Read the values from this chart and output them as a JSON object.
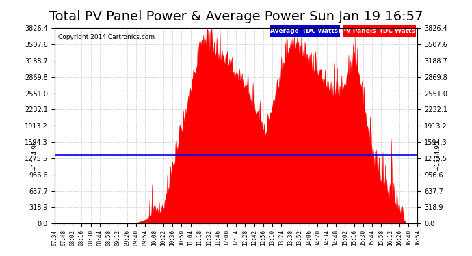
{
  "title": "Total PV Panel Power & Average Power Sun Jan 19 16:57",
  "copyright": "Copyright 2014 Cartronics.com",
  "average_value": 1334.95,
  "y_max": 3826.4,
  "y_ticks": [
    0.0,
    318.9,
    637.7,
    956.6,
    1275.5,
    1594.3,
    1913.2,
    2232.1,
    2551.0,
    2869.8,
    3188.7,
    3507.6,
    3826.4
  ],
  "legend_avg_label": "Average  (DC Watts)",
  "legend_pv_label": "PV Panels  (DC Watts)",
  "avg_line_color": "#0000ff",
  "pv_fill_color": "#ff0000",
  "background_color": "#ffffff",
  "plot_bg_color": "#ffffff",
  "grid_color": "#cccccc",
  "title_fontsize": 14,
  "x_tick_labels": [
    "07:34",
    "07:48",
    "08:02",
    "08:16",
    "08:30",
    "08:44",
    "08:58",
    "09:12",
    "09:26",
    "09:40",
    "09:54",
    "10:08",
    "10:22",
    "10:36",
    "10:50",
    "11:04",
    "11:18",
    "11:32",
    "11:46",
    "12:00",
    "12:14",
    "12:28",
    "12:42",
    "12:56",
    "13:10",
    "13:24",
    "13:38",
    "13:52",
    "14:06",
    "14:20",
    "14:34",
    "14:48",
    "15:02",
    "15:16",
    "15:30",
    "15:44",
    "15:58",
    "16:12",
    "16:26",
    "16:40",
    "16:54"
  ]
}
